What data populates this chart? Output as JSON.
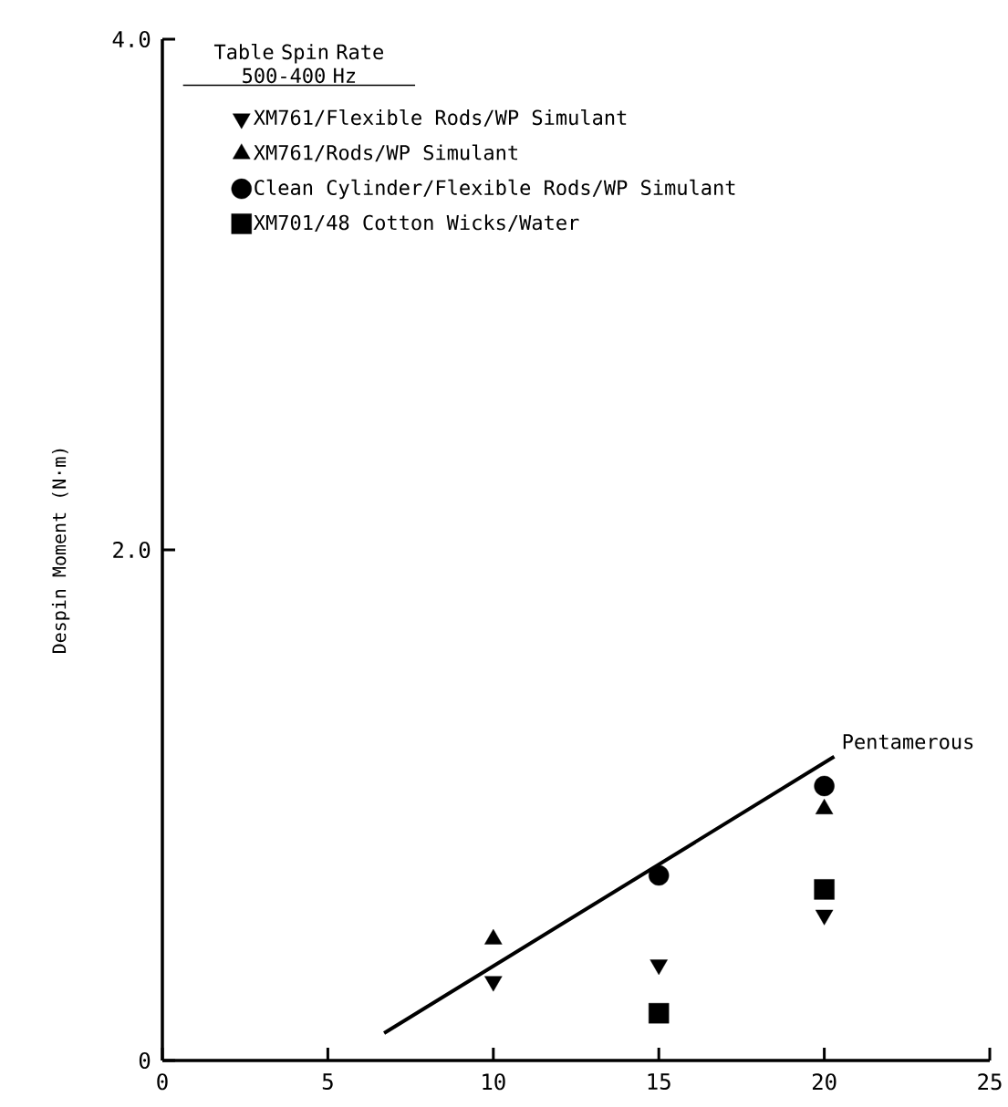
{
  "chart_data": {
    "type": "scatter",
    "ylabel": "Despin Moment (N·m)",
    "legend_title": "Table Spin Rate 500-400 Hz",
    "legend": "top left",
    "xlim": [
      0,
      25
    ],
    "ylim": [
      0,
      4
    ],
    "xticks": [
      0,
      5,
      10,
      15,
      20,
      25
    ],
    "yticks": [
      0,
      {
        "value": 2,
        "label": "2.0"
      },
      {
        "value": 4,
        "label": "4.0"
      }
    ],
    "series": [
      {
        "name": "XM761/Flexible Rods/WP Simulant",
        "color": "#000000",
        "marker": "triangle-down",
        "x": [
          10,
          15,
          20
        ],
        "values": [
          0.31,
          0.375,
          0.57
        ]
      },
      {
        "name": "XM761/Rods/WP Simulant",
        "color": "#000000",
        "marker": "triangle",
        "x": [
          10,
          20
        ],
        "values": [
          0.475,
          0.985
        ]
      },
      {
        "name": "Clean Cylinder/Flexible Rods/WP Simulant",
        "color": "#000000",
        "marker": "circle",
        "x": [
          15,
          20
        ],
        "values": [
          0.725,
          1.075
        ]
      },
      {
        "name": "XM701/48 Cotton Wicks/Water",
        "color": "#000000",
        "marker": "square",
        "x": [
          15,
          20
        ],
        "values": [
          0.185,
          0.67
        ]
      },
      {
        "name": "Pentamerous",
        "type": "line",
        "color": "#000000",
        "x": [
          6.7,
          20.3
        ],
        "values": [
          0.107,
          1.19
        ]
      }
    ]
  }
}
